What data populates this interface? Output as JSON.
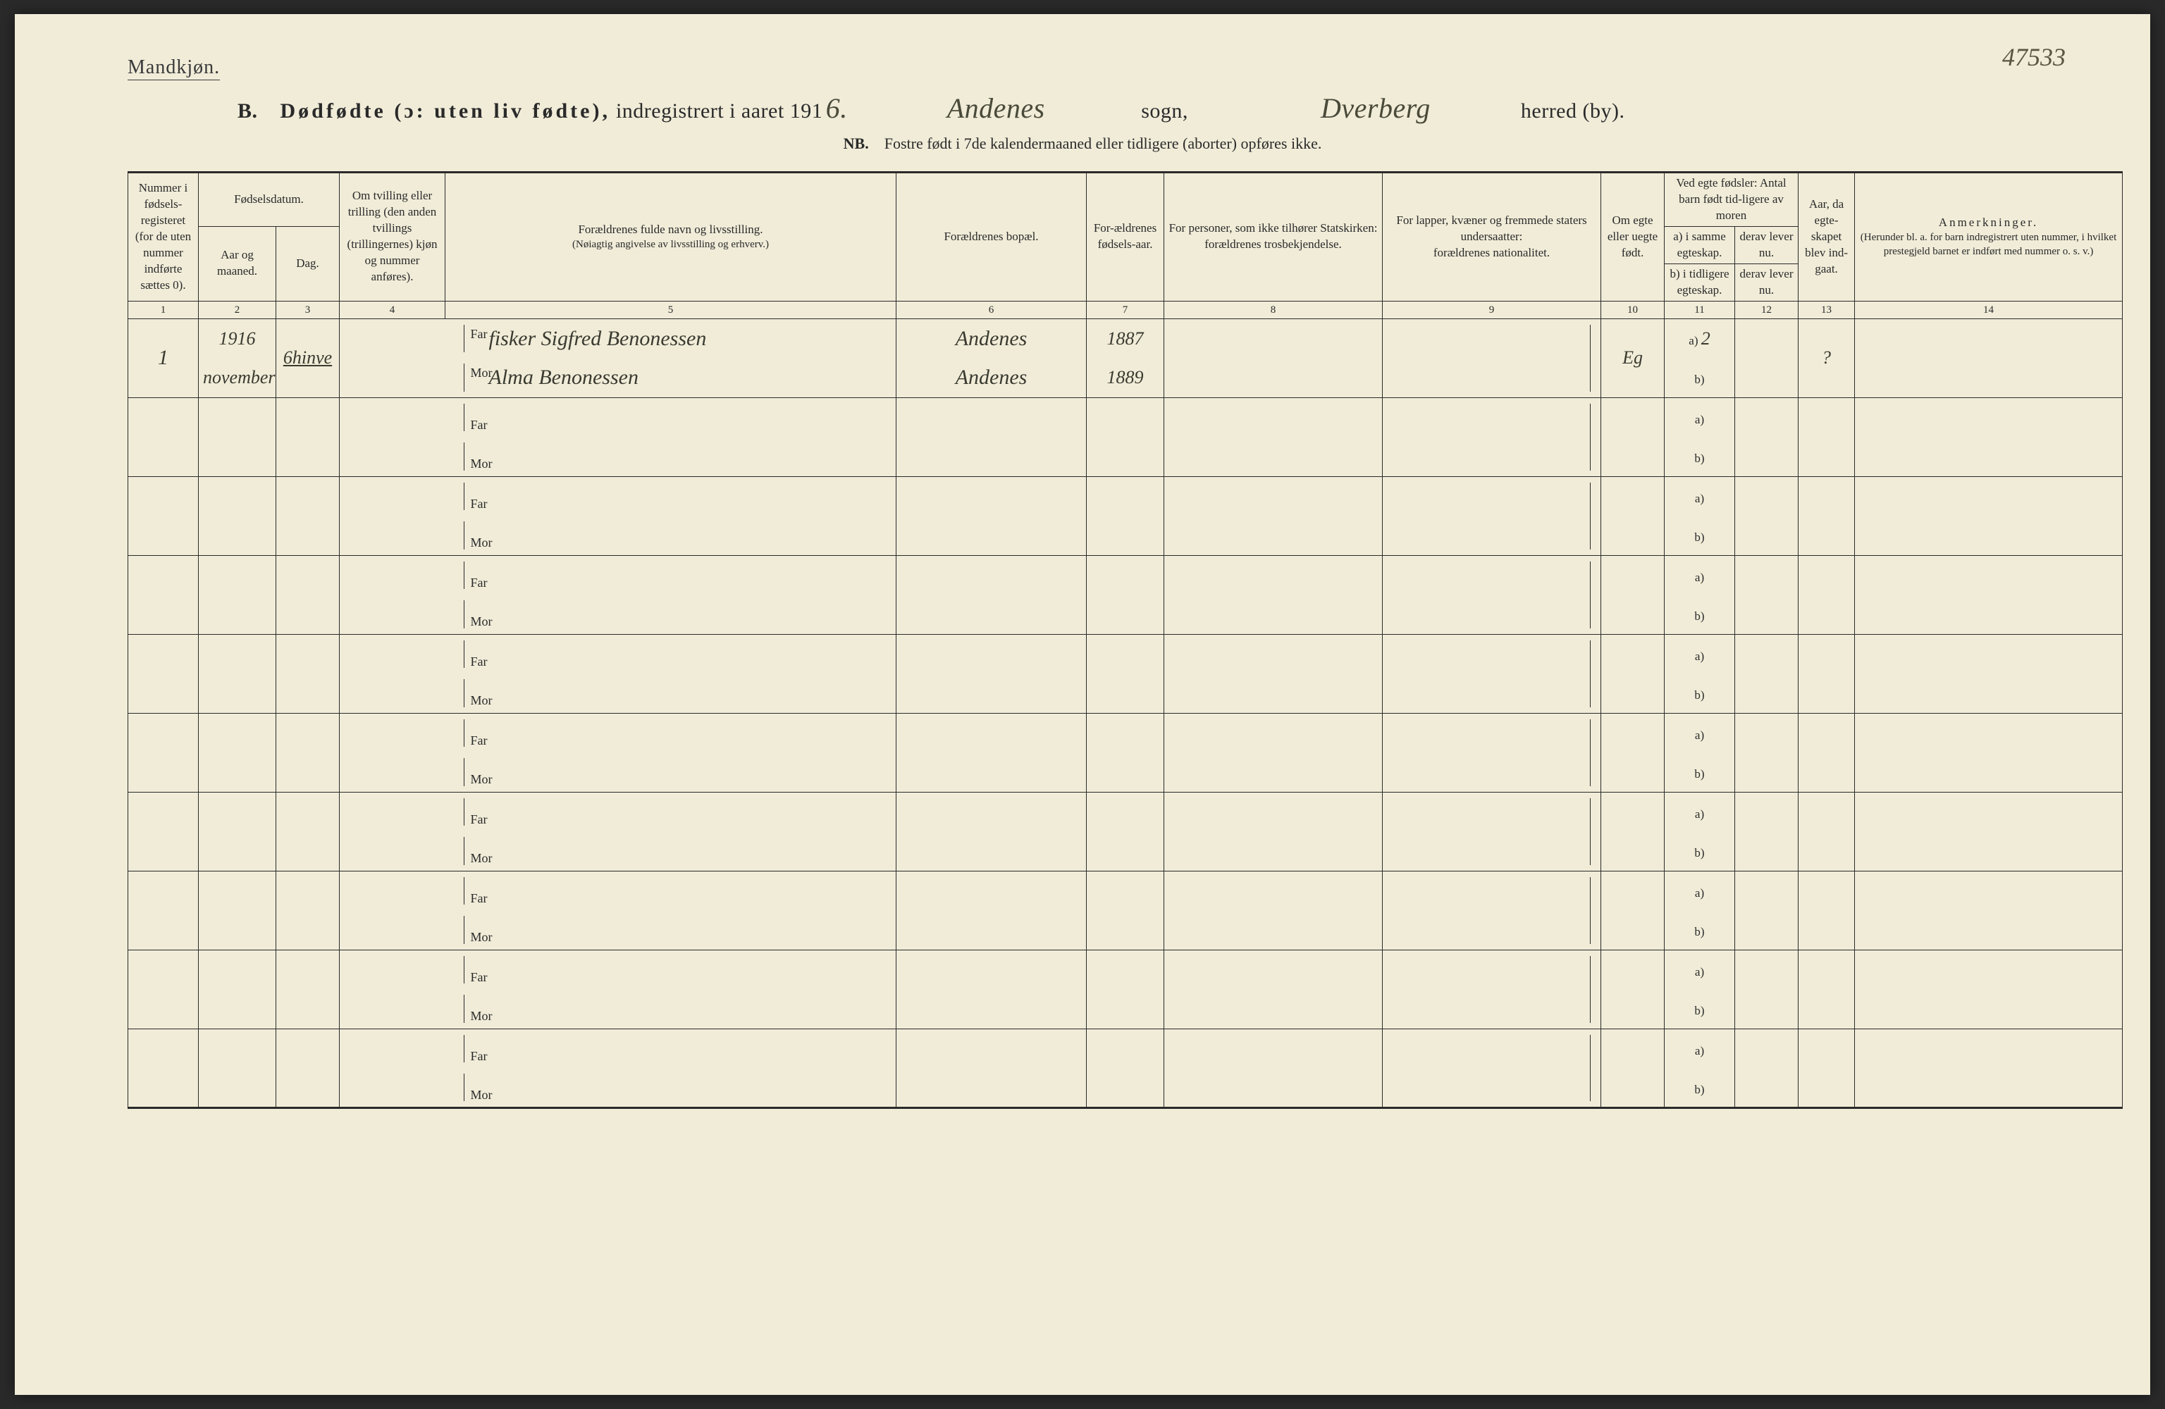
{
  "page_number_handwritten": "47533",
  "top_label": "Mandkjøn.",
  "title": {
    "prefix": "B.",
    "main_bold": "Dødfødte (ɔ: uten liv fødte),",
    "mid": " indregistrert i aaret 191",
    "year_hand": "6.",
    "sogn_hand": "Andenes",
    "sogn_label": "sogn,",
    "herred_hand": "Dverberg",
    "herred_label": "herred (by)."
  },
  "nb_line": {
    "nb": "NB.",
    "text": "Fostre født i 7de kalendermaaned eller tidligere (aborter) opføres ikke."
  },
  "headers": {
    "c1": "Nummer i fødsels-registeret (for de uten nummer indførte sættes 0).",
    "c23_top": "Fødselsdatum.",
    "c2": "Aar og maaned.",
    "c3": "Dag.",
    "c4": "Om tvilling eller trilling (den anden tvillings (trillingernes) kjøn og nummer anføres).",
    "c5a": "Forældrenes fulde navn og livsstilling.",
    "c5b": "(Nøiagtig angivelse av livsstilling og erhverv.)",
    "c6": "Forældrenes bopæl.",
    "c7": "For-ældrenes fødsels-aar.",
    "c8a": "For personer, som ikke tilhører Statskirken:",
    "c8b": "forældrenes trosbekjendelse.",
    "c9a": "For lapper, kvæner og fremmede staters undersaatter:",
    "c9b": "forældrenes nationalitet.",
    "c10": "Om egte eller uegte født.",
    "c11_top": "Ved egte fødsler: Antal barn født tid-ligere av moren",
    "c11a": "a) i samme egteskap.",
    "c11b": "b) i tidligere egteskap.",
    "c12a": "derav lever nu.",
    "c12b": "derav lever nu.",
    "c13": "Aar, da egte-skapet blev ind-gaat.",
    "c14_top": "Anmerkninger.",
    "c14a": "(Herunder bl. a. for barn indregistrert uten nummer, i hvilket prestegjeld barnet er indført med nummer o. s. v.)"
  },
  "colnums": [
    "1",
    "2",
    "3",
    "4",
    "5",
    "6",
    "7",
    "8",
    "9",
    "10",
    "11",
    "12",
    "13",
    "14"
  ],
  "far_label": "Far",
  "mor_label": "Mor",
  "a_label": "a)",
  "b_label": "b)",
  "entries": [
    {
      "num": "1",
      "year": "1916",
      "month": "november",
      "day": "6hinve",
      "far_text": "fisker Sigfred Benonessen",
      "mor_text": "Alma Benonessen",
      "far_place": "Andenes",
      "mor_place": "Andenes",
      "far_year": "1887",
      "mor_year": "1889",
      "egte": "Eg",
      "a_val": "2",
      "b_val": "",
      "c12a": "",
      "c12b": "",
      "c13": "?"
    },
    {},
    {},
    {},
    {},
    {},
    {},
    {},
    {},
    {}
  ]
}
